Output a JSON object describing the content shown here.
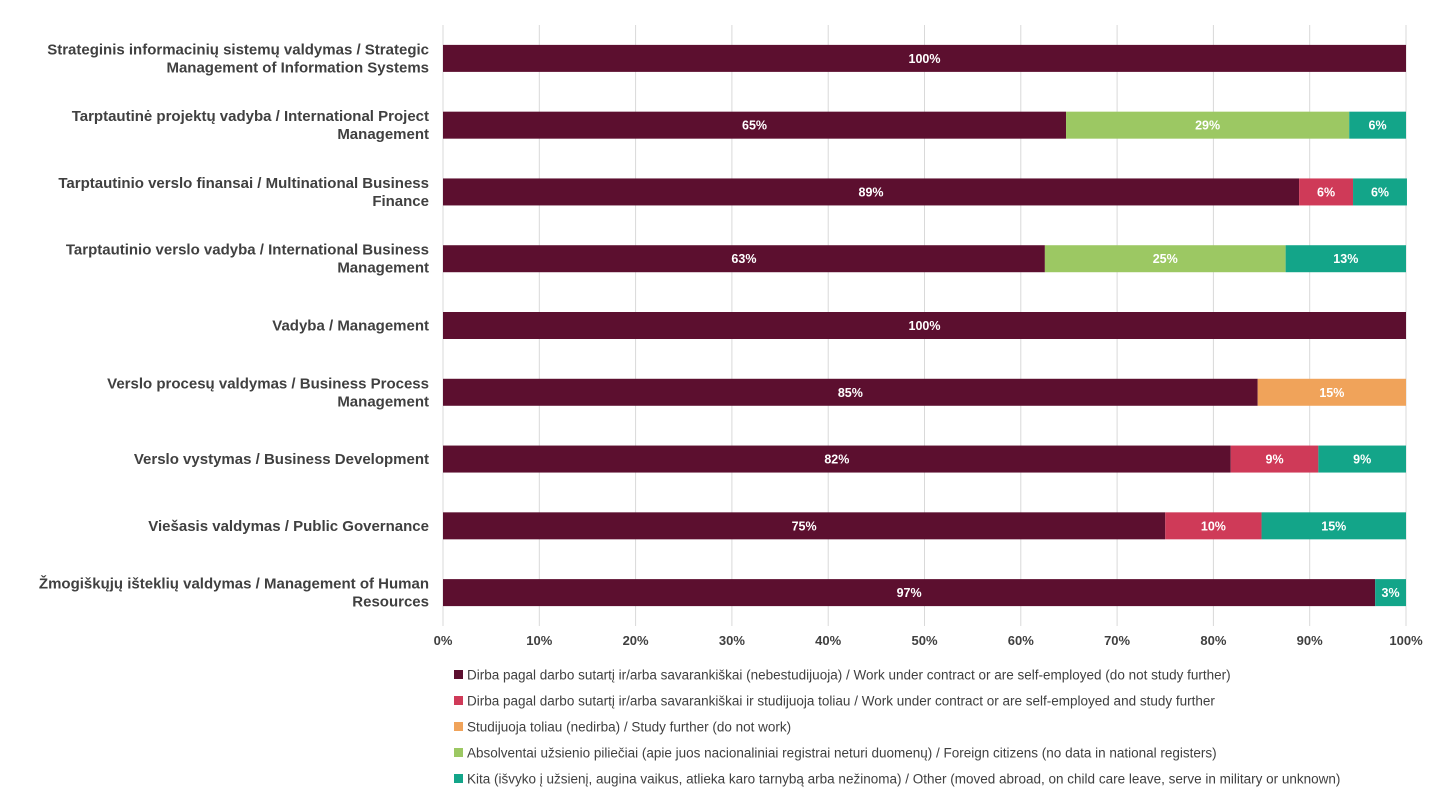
{
  "chart_data": {
    "type": "bar",
    "orientation": "horizontal",
    "stacked": true,
    "percent": true,
    "xlim": [
      0,
      100
    ],
    "x_ticks": [
      "0%",
      "10%",
      "20%",
      "30%",
      "40%",
      "50%",
      "60%",
      "70%",
      "80%",
      "90%",
      "100%"
    ],
    "grid": "vertical",
    "legend_placement": "bottom",
    "categories": [
      "Strateginis informacinių sistemų valdymas / Strategic Management of Information Systems",
      "Tarptautinė projektų vadyba / International Project Management",
      "Tarptautinio verslo finansai / Multinational Business Finance",
      "Tarptautinio verslo vadyba / International Business Management",
      "Vadyba / Management",
      "Verslo procesų valdymas / Business Process Management",
      "Verslo vystymas / Business Development",
      "Viešasis valdymas / Public Governance",
      "Žmogiškųjų išteklių valdymas / Management of Human Resources"
    ],
    "category_label_lines": [
      [
        "Strateginis informacinių sistemų valdymas / Strategic",
        "Management of Information Systems"
      ],
      [
        "Tarptautinė projektų vadyba / International Project",
        "Management"
      ],
      [
        "Tarptautinio verslo finansai / Multinational Business",
        "Finance"
      ],
      [
        "Tarptautinio verslo vadyba / International Business",
        "Management"
      ],
      [
        "Vadyba / Management"
      ],
      [
        "Verslo procesų valdymas / Business Process",
        "Management"
      ],
      [
        "Verslo vystymas / Business Development"
      ],
      [
        "Viešasis valdymas / Public Governance"
      ],
      [
        "Žmogiškųjų išteklių valdymas / Management of Human",
        "Resources"
      ]
    ],
    "series": [
      {
        "name": "Dirba pagal darbo sutartį ir/arba savarankiškai (nebestudijuoja) / Work under contract or are self-employed (do not study further)",
        "color": "#5c0f2f",
        "values": [
          100,
          64.7,
          88.9,
          62.5,
          100,
          84.6,
          81.8,
          75,
          96.8
        ],
        "labels": [
          "100%",
          "65%",
          "89%",
          "63%",
          "100%",
          "85%",
          "82%",
          "75%",
          "97%"
        ]
      },
      {
        "name": "Dirba pagal darbo sutartį ir/arba savarankiškai  ir studijuoja toliau / Work under contract or are self-employed and study further",
        "color": "#cf3a58",
        "values": [
          0,
          0,
          5.6,
          0,
          0,
          0,
          9.1,
          10,
          0
        ],
        "labels": [
          "",
          "",
          "6%",
          "",
          "",
          "",
          "9%",
          "10%",
          ""
        ]
      },
      {
        "name": "Studijuoja toliau (nedirba) / Study further (do not work)",
        "color": "#f0a35a",
        "values": [
          0,
          0,
          0,
          0,
          0,
          15.4,
          0,
          0,
          0
        ],
        "labels": [
          "",
          "",
          "",
          "",
          "",
          "15%",
          "",
          "",
          ""
        ]
      },
      {
        "name": "Absolventai užsienio piliečiai (apie juos nacionaliniai registrai neturi duomenų) / Foreign citizens (no data in national registers)",
        "color": "#9cc863",
        "values": [
          0,
          29.4,
          0,
          25,
          0,
          0,
          0,
          0,
          0
        ],
        "labels": [
          "",
          "29%",
          "",
          "25%",
          "",
          "",
          "",
          "",
          ""
        ]
      },
      {
        "name": "Kita (išvyko į užsienį, augina vaikus, atlieka karo tarnybą arba nežinoma) / Other (moved abroad, on child care leave, serve in military or unknown)",
        "color": "#13a589",
        "values": [
          0,
          5.9,
          5.6,
          12.5,
          0,
          0,
          9.1,
          15,
          3.2
        ],
        "labels": [
          "",
          "6%",
          "6%",
          "13%",
          "",
          "",
          "9%",
          "15%",
          "3%"
        ]
      }
    ]
  }
}
